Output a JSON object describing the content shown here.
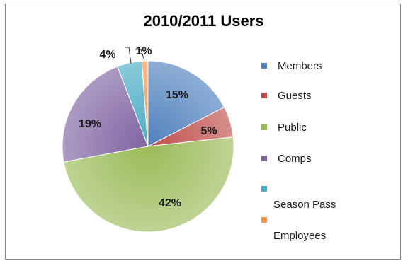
{
  "chart_data": {
    "type": "pie",
    "title": "2010/2011 Users",
    "slices": [
      {
        "label": "Members",
        "value": 15,
        "display": "15%",
        "color": "#4F81BD"
      },
      {
        "label": "Guests",
        "value": 5,
        "display": "5%",
        "color": "#C0504D"
      },
      {
        "label": "Public",
        "value": 42,
        "display": "42%",
        "color": "#9BBB59"
      },
      {
        "label": "Comps",
        "value": 19,
        "display": "19%",
        "color": "#8064A2"
      },
      {
        "label": "Season Pass",
        "value": 4,
        "display": "4%",
        "color": "#4BACC6"
      },
      {
        "label": "Employees",
        "value": 1,
        "display": "1%",
        "color": "#F79646"
      }
    ],
    "legend_position": "right"
  }
}
